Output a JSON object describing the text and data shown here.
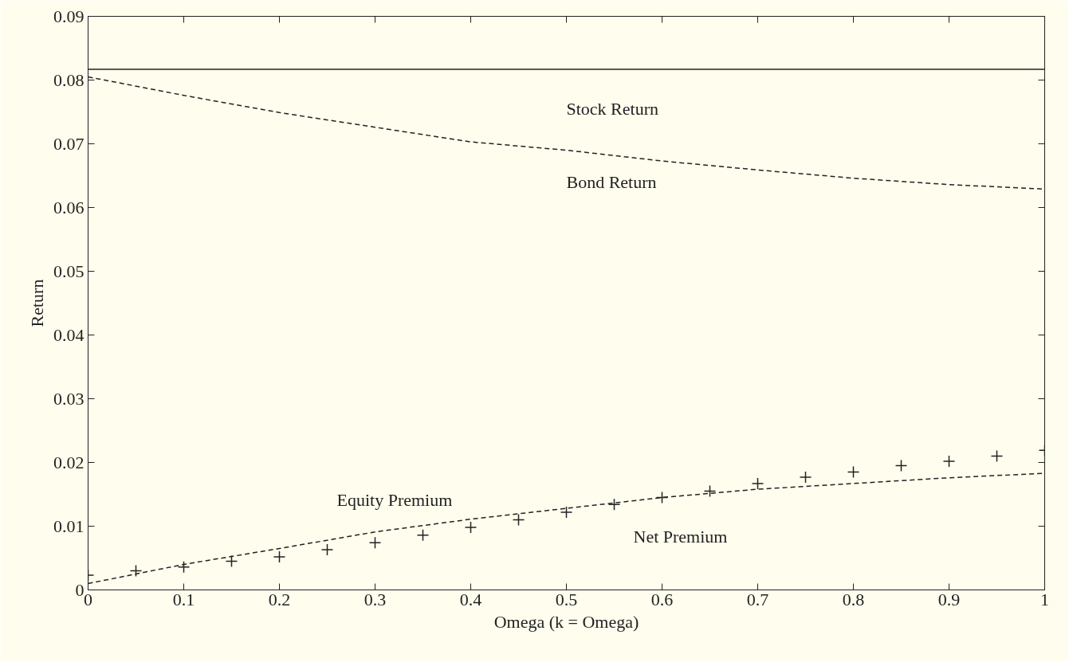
{
  "chart_data": {
    "type": "line",
    "xlabel": "Omega (k = Omega)",
    "ylabel": "Return",
    "xlim": [
      0,
      1
    ],
    "ylim": [
      0,
      0.09
    ],
    "xticks": [
      0,
      0.1,
      0.2,
      0.3,
      0.4,
      0.5,
      0.6,
      0.7,
      0.8,
      0.9,
      1
    ],
    "yticks": [
      0,
      0.01,
      0.02,
      0.03,
      0.04,
      0.05,
      0.06,
      0.07,
      0.08,
      0.09
    ],
    "grid": false,
    "legend": false,
    "series": [
      {
        "name": "Stock Return",
        "line_style": "solid",
        "color": "#222222",
        "x": [
          0,
          1
        ],
        "values": [
          0.0817,
          0.0817
        ]
      },
      {
        "name": "Bond Return",
        "line_style": "dashed",
        "color": "#222222",
        "x": [
          0,
          0.1,
          0.2,
          0.3,
          0.4,
          0.5,
          0.6,
          0.7,
          0.8,
          0.9,
          1
        ],
        "values": [
          0.0805,
          0.0776,
          0.0749,
          0.0726,
          0.0703,
          0.069,
          0.0673,
          0.0659,
          0.0646,
          0.0636,
          0.0629
        ]
      },
      {
        "name": "Equity Premium",
        "line_style": "dashed",
        "color": "#222222",
        "x": [
          0,
          0.1,
          0.2,
          0.3,
          0.4,
          0.5,
          0.6,
          0.7,
          0.8,
          0.9,
          1
        ],
        "values": [
          0.001,
          0.004,
          0.0065,
          0.0091,
          0.0111,
          0.0128,
          0.0145,
          0.0158,
          0.0167,
          0.0176,
          0.0183
        ]
      },
      {
        "name": "Net Premium",
        "type": "scatter",
        "marker": "cross",
        "color": "#222222",
        "x": [
          0,
          0.05,
          0.1,
          0.15,
          0.2,
          0.25,
          0.3,
          0.35,
          0.4,
          0.45,
          0.5,
          0.55,
          0.6,
          0.65,
          0.7,
          0.75,
          0.8,
          0.85,
          0.9,
          0.95,
          1
        ],
        "values": [
          0.0023,
          0.003,
          0.0036,
          0.0045,
          0.0052,
          0.0063,
          0.0074,
          0.0086,
          0.0098,
          0.011,
          0.0122,
          0.0134,
          0.0145,
          0.0155,
          0.0167,
          0.0177,
          0.0185,
          0.0195,
          0.0202,
          0.021,
          0.0219
        ]
      }
    ]
  }
}
